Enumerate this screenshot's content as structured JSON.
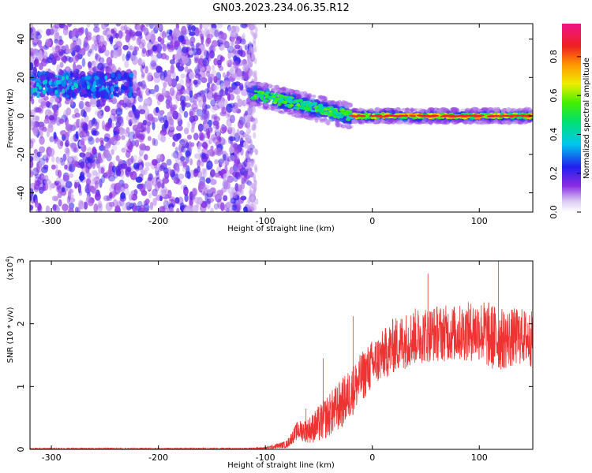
{
  "title": "GN03.2023.234.06.35.R12",
  "chart_data": [
    {
      "type": "heatmap",
      "xlabel": "Height of straight line (km)",
      "ylabel": "Frequency (Hz)",
      "xlim": [
        -320,
        150
      ],
      "ylim": [
        -50,
        48
      ],
      "xticks": [
        -300,
        -200,
        -100,
        0,
        100
      ],
      "yticks": [
        -40,
        -20,
        0,
        20,
        40
      ],
      "grid": false,
      "colorbar": {
        "label": "Normalized spectral amplitude",
        "range": [
          0.0,
          0.97
        ],
        "ticks": [
          0.0,
          0.2,
          0.4,
          0.6,
          0.8
        ],
        "colormap": "rainbow (white, violet, blue, cyan, green, yellow, orange, red, magenta)"
      },
      "features": [
        {
          "segment": "noise band",
          "x": [
            -320,
            -112
          ],
          "freq_hz": [
            -50,
            48
          ],
          "amplitude": "0.05-0.25 scattered"
        },
        {
          "segment": "early signal",
          "x": [
            -320,
            -230
          ],
          "freq_hz": [
            10,
            22
          ],
          "amplitude": "0.2-0.4"
        },
        {
          "segment": "transition",
          "x": [
            -115,
            -20
          ],
          "freq_hz": [
            12,
            0
          ],
          "amplitude": "0.4-0.8"
        },
        {
          "segment": "steady line",
          "x": [
            -20,
            150
          ],
          "freq_hz": [
            0,
            0
          ],
          "amplitude": "0.6-0.9"
        }
      ]
    },
    {
      "type": "line",
      "xlabel": "Height of straight line (km)",
      "ylabel": "SNR (10 * v/v)",
      "multiplier_label": "(x10",
      "multiplier_exp": "4",
      "xlim": [
        -320,
        150
      ],
      "ylim": [
        0,
        3
      ],
      "xticks": [
        -300,
        -200,
        -100,
        0,
        100
      ],
      "yticks": [
        0,
        1,
        2,
        3
      ],
      "grid": false,
      "series": [
        {
          "color": "#ee3333",
          "envelope_x": [
            -320,
            -120,
            -100,
            -80,
            -70,
            -60,
            -50,
            -40,
            -30,
            -20,
            -10,
            0,
            10,
            20,
            40,
            60,
            80,
            100,
            110,
            120,
            140,
            150
          ],
          "envelope_mean": [
            0.01,
            0.01,
            0.02,
            0.08,
            0.3,
            0.3,
            0.4,
            0.55,
            0.7,
            0.9,
            1.15,
            1.35,
            1.5,
            1.65,
            1.8,
            1.85,
            1.85,
            1.9,
            1.8,
            1.75,
            1.8,
            1.75
          ],
          "envelope_spread": [
            0.01,
            0.01,
            0.02,
            0.06,
            0.15,
            0.2,
            0.3,
            0.35,
            0.4,
            0.4,
            0.4,
            0.4,
            0.4,
            0.45,
            0.45,
            0.45,
            0.45,
            0.5,
            0.55,
            0.5,
            0.45,
            0.45
          ],
          "peaks": [
            {
              "x": -62,
              "y": 0.65
            },
            {
              "x": -46,
              "y": 1.45
            },
            {
              "x": -18,
              "y": 2.12
            },
            {
              "x": 52,
              "y": 2.8
            },
            {
              "x": 118,
              "y": 3.0
            }
          ]
        }
      ]
    }
  ]
}
